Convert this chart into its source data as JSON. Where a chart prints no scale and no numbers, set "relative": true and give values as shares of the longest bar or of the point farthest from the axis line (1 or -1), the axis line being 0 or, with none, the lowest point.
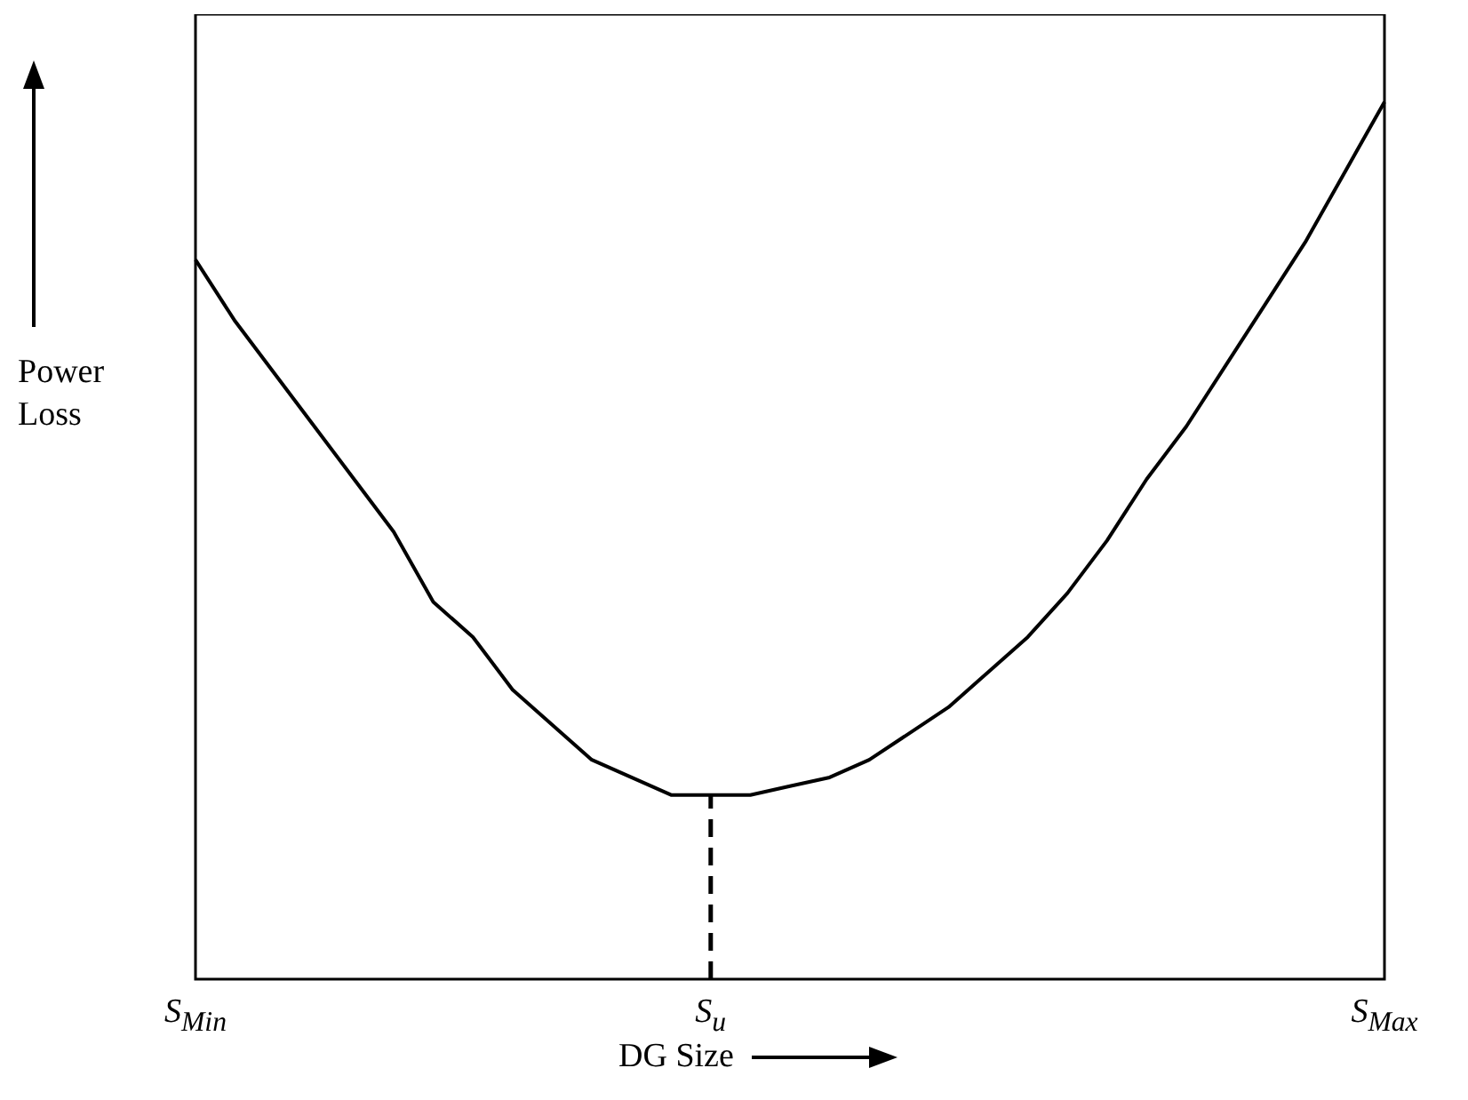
{
  "chart_data": {
    "type": "line",
    "relative": true,
    "xlabel": "DG Size",
    "ylabel": "Power Loss",
    "color": "#000000",
    "marker": "none",
    "line_style": "solid",
    "categories": [
      "S$_{Min}$",
      null,
      null,
      null,
      null,
      null,
      null,
      null,
      null,
      null,
      null,
      null,
      null,
      "S$_{u}$",
      null,
      null,
      null,
      null,
      null,
      null,
      null,
      null,
      null,
      null,
      null,
      null,
      null,
      null,
      null,
      null,
      "S$_{Max}$"
    ],
    "values": [
      0.82,
      0.75,
      0.69,
      0.63,
      0.57,
      0.51,
      0.43,
      0.39,
      0.33,
      0.29,
      0.25,
      0.23,
      0.21,
      0.21,
      0.21,
      0.22,
      0.23,
      0.25,
      0.28,
      0.31,
      0.35,
      0.39,
      0.44,
      0.5,
      0.57,
      0.63,
      0.7,
      0.77,
      0.84,
      0.92,
      1
    ],
    "ref_lines": [
      {
        "axis": "x",
        "value": "S$_{u}$",
        "line_style": "dashed"
      }
    ]
  }
}
